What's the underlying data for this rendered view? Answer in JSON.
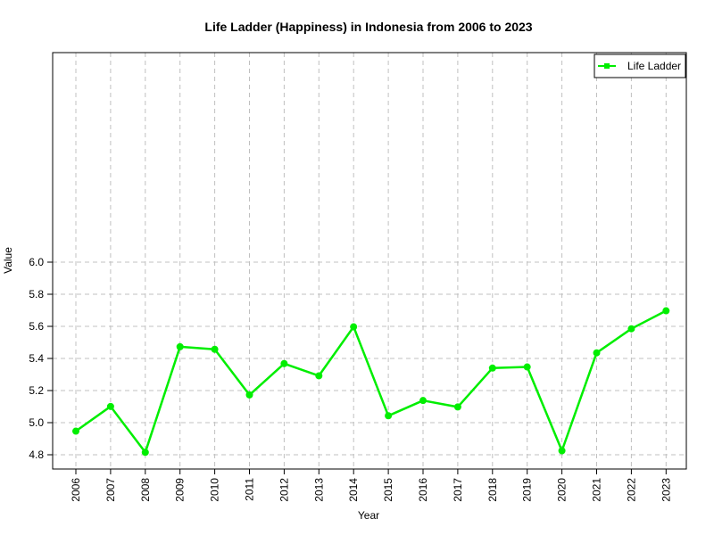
{
  "chart_data": {
    "type": "line",
    "title": "Life Ladder (Happiness) in Indonesia from 2006 to 2023",
    "xlabel": "Year",
    "ylabel": "Value",
    "x": [
      "2006",
      "2007",
      "2008",
      "2009",
      "2010",
      "2011",
      "2012",
      "2013",
      "2014",
      "2015",
      "2016",
      "2017",
      "2018",
      "2019",
      "2020",
      "2021",
      "2022",
      "2023"
    ],
    "series": [
      {
        "name": "Life Ladder",
        "color": "#00ee00",
        "values": [
          4.947,
          5.101,
          4.815,
          5.473,
          5.457,
          5.173,
          5.368,
          5.292,
          5.597,
          5.043,
          5.138,
          5.098,
          5.34,
          5.347,
          4.825,
          5.435,
          5.585,
          5.697
        ]
      }
    ],
    "ylim": [
      4.8,
      6.0
    ],
    "yticks": [
      "4.8",
      "5.0",
      "5.2",
      "5.4",
      "5.6",
      "5.8",
      "6.0"
    ],
    "grid": true,
    "legend_position": "top-right"
  }
}
